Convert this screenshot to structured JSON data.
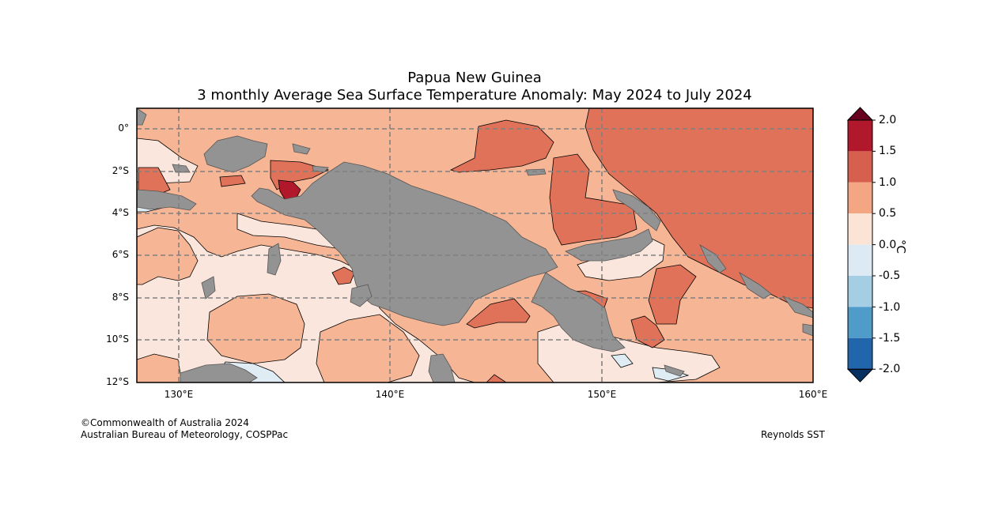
{
  "title": {
    "line1": "Papua New Guinea",
    "line2": "3 monthly Average Sea Surface Temperature Anomaly: May 2024 to July 2024"
  },
  "axes": {
    "lat_labels": [
      "0°",
      "2°S",
      "4°S",
      "6°S",
      "8°S",
      "10°S",
      "12°S"
    ],
    "lon_labels": [
      "130°E",
      "140°E",
      "150°E",
      "160°E"
    ]
  },
  "colorbar": {
    "labels": [
      "2.0",
      "1.5",
      "1.0",
      "0.5",
      "0.0",
      "-0.5",
      "-1.0",
      "-1.5",
      "-2.0"
    ],
    "unit": "°C",
    "colors": {
      "above_max": "#67001f",
      "1.5_to_2.0": "#b2182b",
      "1.0_to_1.5": "#d6604d",
      "0.5_to_1.0": "#f4a582",
      "0.0_to_0.5": "#fbe3d6",
      "-0.5_to_0.0": "#ddeaf3",
      "-1.0_to_-0.5": "#a5cde3",
      "-1.5_to_-1.0": "#4f9bc9",
      "-2.0_to_-1.5": "#2166ac",
      "below_min": "#053061"
    }
  },
  "map": {
    "extent": {
      "lon": [
        128,
        160
      ],
      "lat": [
        -12,
        1
      ]
    },
    "land_color": "#939393",
    "anomaly_colors": {
      "high": "#e0725a",
      "mid": "#f6b594",
      "low": "#fae6dc",
      "cool": "#dfecf4",
      "peak": "#b2182b"
    }
  },
  "footer": {
    "copyright": "©Commonwealth of Australia 2024",
    "agency": "Australian Bureau of Meteorology, COSPPac",
    "source": "Reynolds SST"
  }
}
